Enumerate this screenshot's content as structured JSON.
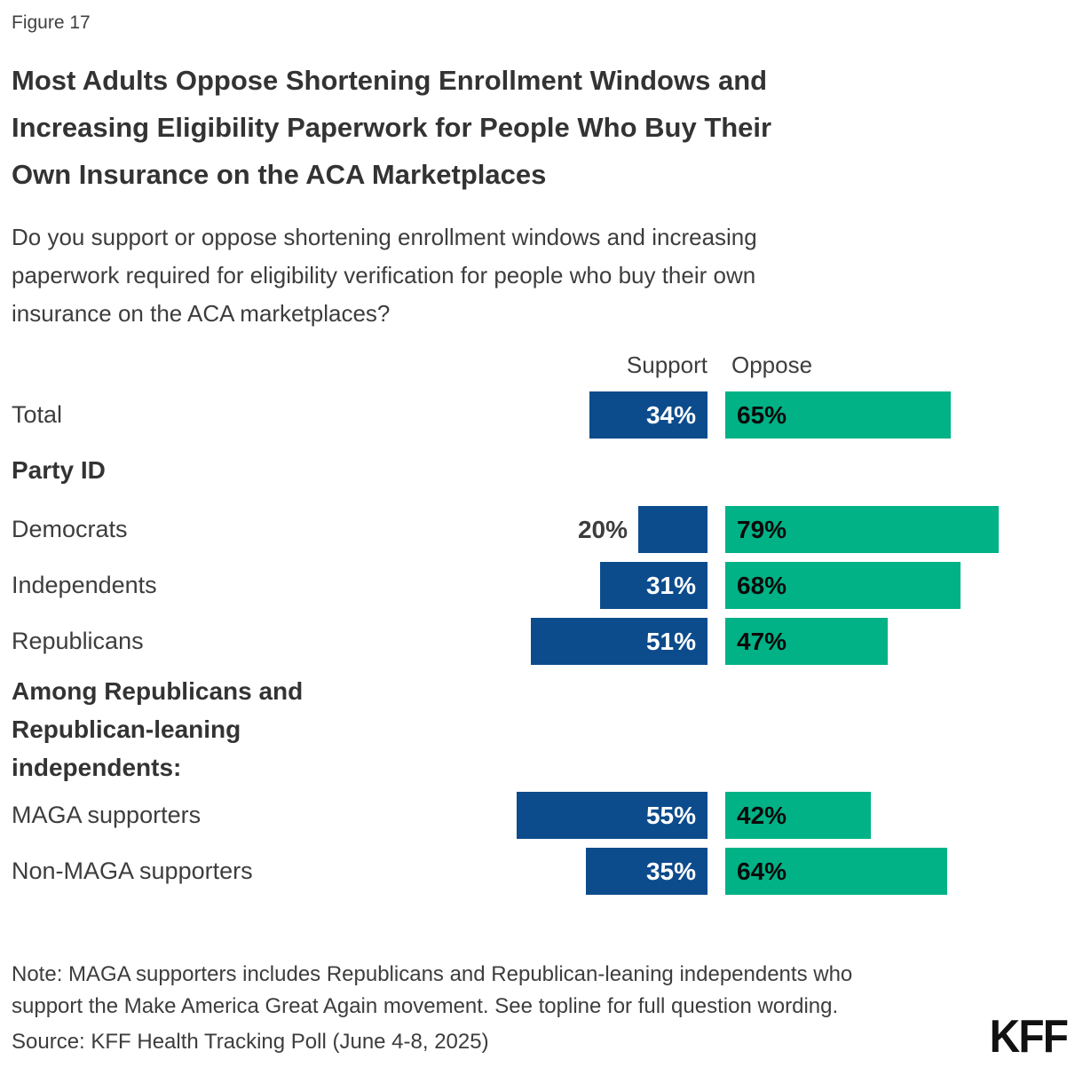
{
  "figure_label": "Figure 17",
  "title": "Most Adults Oppose Shortening Enrollment Windows and\nIncreasing Eligibility Paperwork for People Who Buy Their\nOwn Insurance on the ACA Marketplaces",
  "subtitle": "Do you support or oppose shortening enrollment windows and increasing\npaperwork required for eligibility verification for people who buy their own\ninsurance on the ACA marketplaces?",
  "sections": {
    "party_id": "Party ID",
    "among_republicans": "Among Republicans and\nRepublican-leaning\nindependents:"
  },
  "note": "Note: MAGA supporters includes Republicans and Republican-leaning independents who\nsupport the Make America Great Again movement. See topline for full question wording.",
  "source": "Source: KFF Health Tracking Poll (June 4-8, 2025)",
  "logo": "KFF",
  "colors": {
    "support": "#0D4C8C",
    "oppose": "#00B286",
    "title_text": "#333333",
    "body_text": "#3d3d3d"
  },
  "chart_data": {
    "type": "bar",
    "orientation": "horizontal",
    "unit": "%",
    "title": "Most Adults Oppose Shortening Enrollment Windows and Increasing Eligibility Paperwork for People Who Buy Their Own Insurance on the ACA Marketplaces",
    "legend_position": "top",
    "value_range": [
      0,
      100
    ],
    "categories": [
      "Total",
      "Democrats",
      "Independents",
      "Republicans",
      "MAGA supporters",
      "Non-MAGA supporters"
    ],
    "series": [
      {
        "name": "Support",
        "color": "#0D4C8C",
        "values": [
          34,
          20,
          31,
          51,
          55,
          35
        ]
      },
      {
        "name": "Oppose",
        "color": "#00B286",
        "values": [
          65,
          79,
          68,
          47,
          42,
          64
        ]
      }
    ],
    "groups": [
      {
        "header": "",
        "categories": [
          "Total"
        ]
      },
      {
        "header": "Party ID",
        "categories": [
          "Democrats",
          "Independents",
          "Republicans"
        ]
      },
      {
        "header": "Among Republicans and Republican-leaning independents:",
        "categories": [
          "MAGA supporters",
          "Non-MAGA supporters"
        ]
      }
    ]
  }
}
